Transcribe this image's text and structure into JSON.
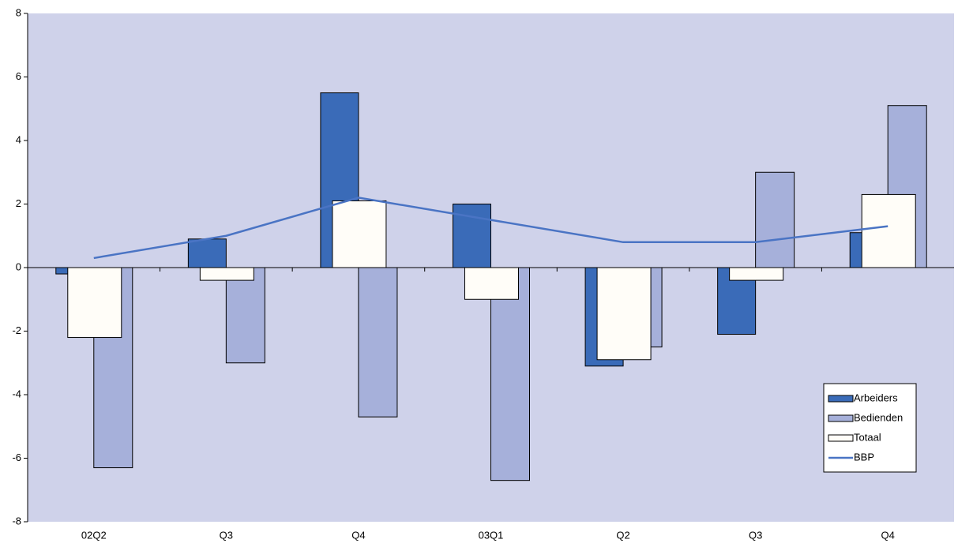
{
  "chart_data": {
    "type": "bar",
    "categories": [
      "02Q2",
      "Q3",
      "Q4",
      "03Q1",
      "Q2",
      "Q3",
      "Q4"
    ],
    "series": [
      {
        "name": "Arbeiders",
        "color": "#3a6bb8",
        "values": [
          -0.2,
          0.9,
          5.5,
          2.0,
          -3.1,
          -2.1,
          1.1
        ]
      },
      {
        "name": "Bedienden",
        "color": "#a6b0da",
        "values": [
          -6.3,
          -3.0,
          -4.7,
          -6.7,
          -2.5,
          3.0,
          5.1
        ]
      },
      {
        "name": "Totaal",
        "color": "#fffdf8",
        "values": [
          -2.2,
          -0.4,
          2.1,
          -1.0,
          -2.9,
          -0.4,
          2.3
        ]
      },
      {
        "name": "BBP",
        "color": "#4a74c4",
        "type": "line",
        "values": [
          0.3,
          1.0,
          2.2,
          1.5,
          0.8,
          0.8,
          1.3
        ]
      }
    ],
    "ylim": [
      -8,
      8
    ],
    "yticks": [
      -8,
      -6,
      -4,
      -2,
      0,
      2,
      4,
      6,
      8
    ],
    "plot_background": "#cfd2ea",
    "legend": "lower right"
  }
}
